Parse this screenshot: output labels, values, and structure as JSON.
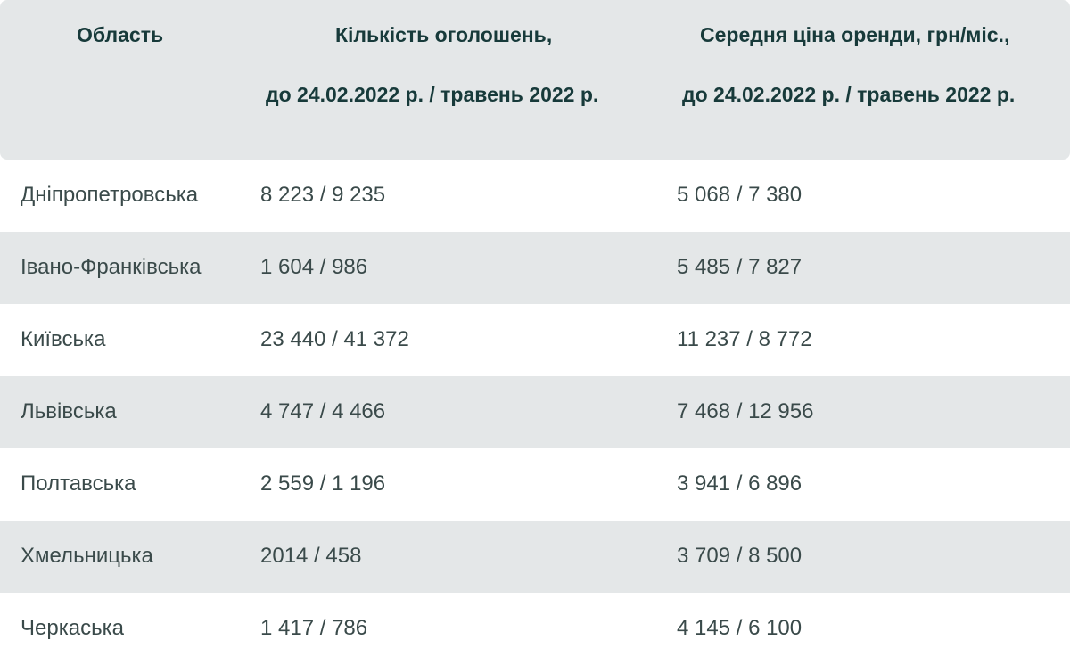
{
  "table": {
    "header": {
      "region": "Область",
      "count_line1": "Кількість оголошень,",
      "count_line2": "до 24.02.2022 р. / травень 2022 р.",
      "price_line1": "Середня ціна оренди, грн/міс.,",
      "price_line2": "до 24.02.2022 р. / травень 2022 р."
    },
    "rows": [
      {
        "region": "Дніпропетровська",
        "count": "8 223 / 9 235",
        "price": "5 068 / 7 380"
      },
      {
        "region": "Івано-Франківська",
        "count": "1 604 / 986",
        "price": "5 485 / 7 827"
      },
      {
        "region": "Київська",
        "count": "23 440 / 41 372",
        "price": "11 237 / 8 772"
      },
      {
        "region": "Львівська",
        "count": "4 747 / 4 466",
        "price": "7 468 / 12 956"
      },
      {
        "region": "Полтавська",
        "count": "2 559 / 1 196",
        "price": "3 941 / 6 896"
      },
      {
        "region": "Хмельницька",
        "count": "2014 / 458",
        "price": "3 709 / 8 500"
      },
      {
        "region": "Черкаська",
        "count": "1 417 / 786",
        "price": "4 145 / 6 100"
      }
    ]
  }
}
